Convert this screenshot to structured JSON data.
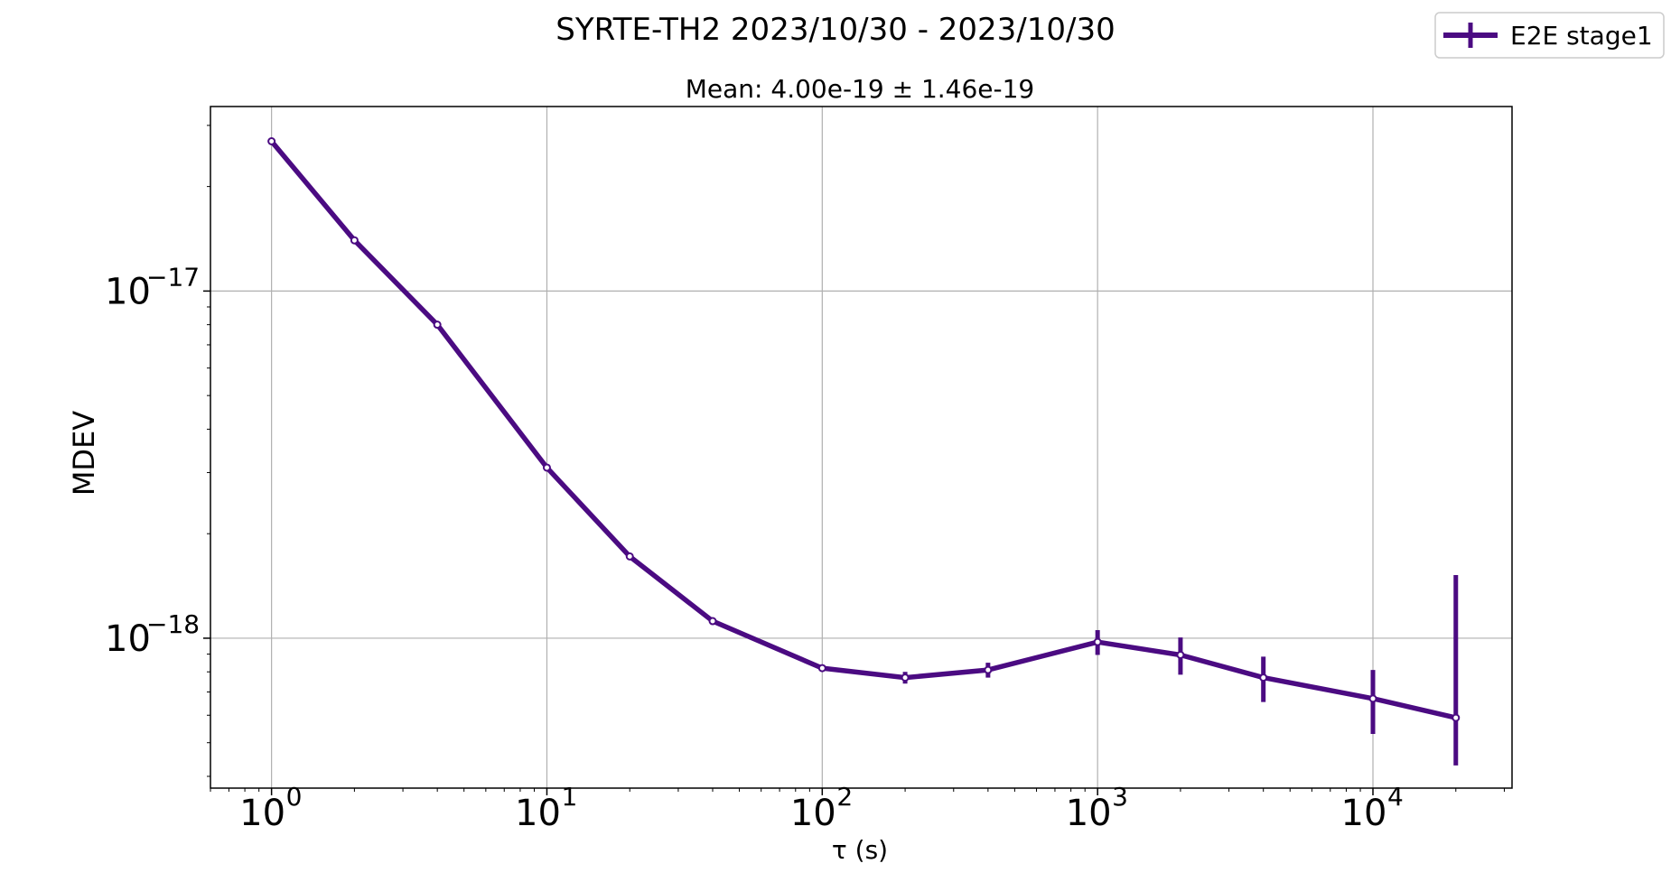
{
  "chart_data": {
    "type": "line",
    "title": "SYRTE-TH2 2023/10/30 - 2023/10/30",
    "subtitle": "Mean: 4.00e-19 ± 1.46e-19",
    "xlabel": "τ (s)",
    "ylabel": "MDEV",
    "x_scale": "log",
    "y_scale": "log",
    "xlim": [
      0.6,
      32000
    ],
    "ylim": [
      3.7e-19,
      3.4e-17
    ],
    "grid": true,
    "legend_position": "top-right",
    "x_ticks": [
      {
        "value": 1,
        "base": "10",
        "exp": "0"
      },
      {
        "value": 10,
        "base": "10",
        "exp": "1"
      },
      {
        "value": 100,
        "base": "10",
        "exp": "2"
      },
      {
        "value": 1000,
        "base": "10",
        "exp": "3"
      },
      {
        "value": 10000,
        "base": "10",
        "exp": "4"
      }
    ],
    "y_ticks": [
      {
        "value": 1e-17,
        "base": "10",
        "exp": "−17"
      },
      {
        "value": 1e-18,
        "base": "10",
        "exp": "−18"
      }
    ],
    "series": [
      {
        "name": "E2E stage1",
        "color": "#4b0b82",
        "x": [
          1,
          2,
          4,
          10,
          20,
          40,
          100,
          200,
          400,
          1000,
          2000,
          4000,
          10000,
          20000
        ],
        "y": [
          2.7e-17,
          1.4e-17,
          8e-18,
          3.1e-18,
          1.72e-18,
          1.12e-18,
          8.2e-19,
          7.7e-19,
          8.1e-19,
          9.75e-19,
          8.95e-19,
          7.7e-19,
          6.7e-19,
          5.9e-19
        ],
        "err_low": [
          0,
          0,
          0,
          0,
          0,
          0,
          1e-20,
          3e-20,
          4e-20,
          8e-20,
          1.1e-19,
          1.15e-19,
          1.4e-19,
          1.6e-19
        ],
        "err_high": [
          0,
          0,
          0,
          0,
          0,
          0,
          1e-20,
          3e-20,
          4e-20,
          8e-20,
          1.1e-19,
          1.15e-19,
          1.4e-19,
          9.3e-19
        ]
      }
    ]
  }
}
